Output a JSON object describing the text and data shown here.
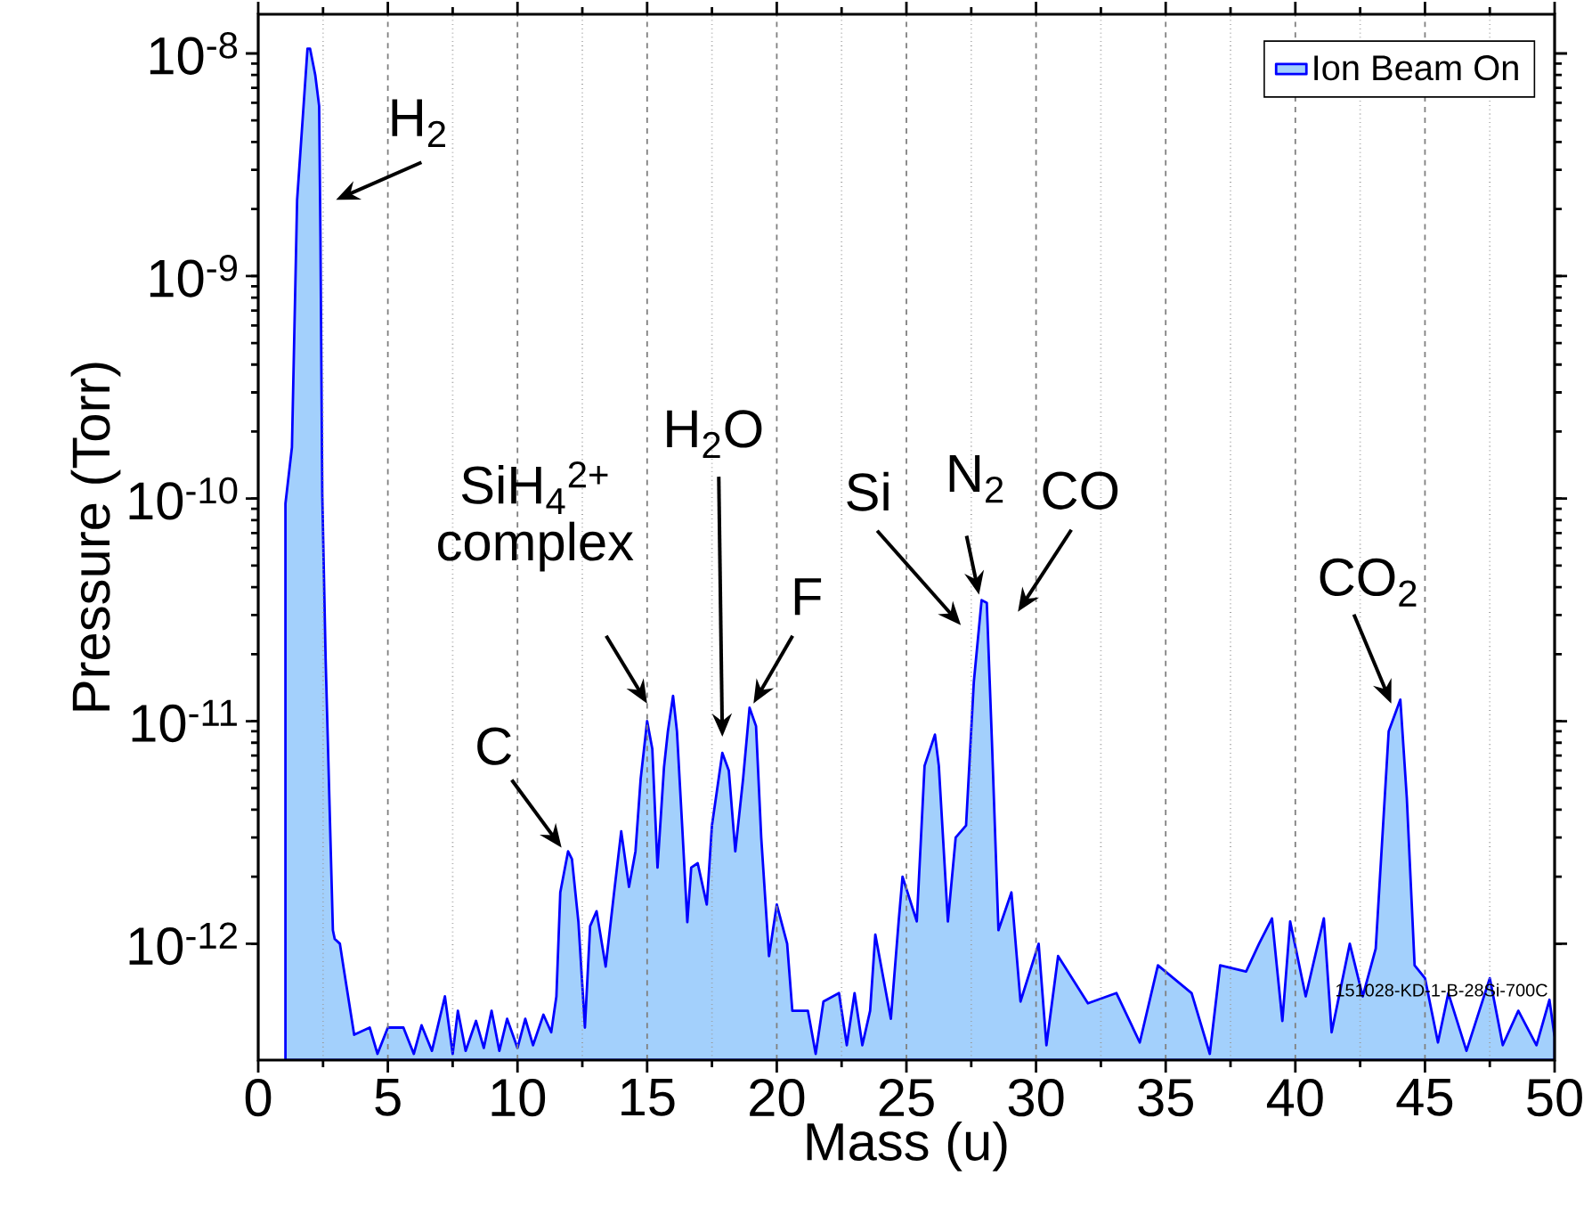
{
  "chart_data": {
    "type": "area",
    "xlabel": "Mass (u)",
    "ylabel": "Pressure (Torr)",
    "x": [
      1.05,
      1.3,
      1.5,
      1.9,
      2.0,
      2.2,
      2.35,
      2.4,
      2.47,
      2.6,
      2.88,
      2.95,
      3.15,
      3.3,
      3.5,
      3.7,
      4.0,
      4.3,
      4.6,
      5.0,
      5.3,
      5.6,
      6.0,
      6.3,
      6.7,
      7.2,
      7.5,
      7.7,
      8.0,
      8.4,
      8.7,
      9.0,
      9.3,
      9.6,
      10.0,
      10.3,
      10.6,
      11.0,
      11.3,
      11.5,
      11.65,
      11.95,
      12.1,
      12.35,
      12.6,
      12.8,
      13.05,
      13.4,
      13.75,
      14.0,
      14.3,
      14.55,
      14.75,
      15.0,
      15.2,
      15.4,
      15.65,
      15.8,
      16.0,
      16.15,
      16.35,
      16.55,
      16.7,
      16.95,
      17.3,
      17.5,
      17.9,
      18.15,
      18.4,
      18.7,
      18.95,
      19.2,
      19.4,
      19.7,
      20.0,
      20.4,
      20.6,
      20.8,
      21.2,
      21.5,
      21.8,
      22.1,
      22.4,
      22.7,
      23.0,
      23.3,
      23.6,
      23.8,
      24.4,
      24.7,
      24.85,
      25.4,
      25.7,
      26.1,
      26.25,
      26.6,
      26.9,
      27.3,
      27.6,
      27.9,
      28.1,
      28.3,
      28.55,
      29.05,
      29.4,
      30.1,
      30.4,
      30.85,
      31.5,
      32.0,
      32.4,
      33.1,
      34.0,
      34.7,
      35.3,
      36.0,
      36.7,
      37.1,
      37.6,
      38.1,
      38.6,
      39.1,
      39.5,
      39.8,
      40.4,
      41.1,
      41.4,
      42.1,
      42.6,
      43.1,
      43.6,
      44.05,
      44.3,
      44.6,
      45.0,
      45.5,
      45.9,
      46.6,
      47.5,
      48.0,
      48.6,
      49.3,
      49.8,
      50.0
    ],
    "series": [
      {
        "name": "Ion Beam On",
        "color": "#a3d0fc",
        "values": [
          9.5e-11,
          1.7e-10,
          2.2e-09,
          1.05e-08,
          1.05e-08,
          8e-09,
          5.8e-09,
          1.5e-09,
          1.05e-10,
          1.9e-11,
          1.15e-12,
          1.05e-12,
          1e-12,
          7.7e-13,
          null,
          3.9e-13,
          null,
          4.2e-13,
          3.2e-13,
          4.2e-13,
          null,
          4.2e-13,
          3.2e-13,
          4.3e-13,
          3.3e-13,
          5.8e-13,
          3.2e-13,
          5e-13,
          3.3e-13,
          4.5e-13,
          3.4e-13,
          5e-13,
          3.3e-13,
          4.6e-13,
          3.4e-13,
          4.6e-13,
          3.5e-13,
          4.8e-13,
          4e-13,
          5.8e-13,
          1.7e-12,
          2.6e-12,
          2.4e-12,
          1.25e-12,
          4.2e-13,
          1.2e-12,
          1.4e-12,
          7.9e-13,
          1.8e-12,
          3.2e-12,
          1.8e-12,
          2.6e-12,
          5.5e-12,
          1e-11,
          7.5e-12,
          2.2e-12,
          6.2e-12,
          9e-12,
          1.3e-11,
          9e-12,
          3.4e-12,
          1.25e-12,
          2.2e-12,
          2.3e-12,
          1.5e-12,
          3.4e-12,
          7.2e-12,
          6e-12,
          2.6e-12,
          5.5e-12,
          1.15e-11,
          9.5e-12,
          3e-12,
          8.8e-13,
          1.5e-12,
          1e-12,
          5e-13,
          null,
          5e-13,
          3.2e-13,
          5.5e-13,
          null,
          6e-13,
          3.5e-13,
          6e-13,
          3.5e-13,
          5e-13,
          1.1e-12,
          4.6e-13,
          1.26e-12,
          2e-12,
          1.26e-12,
          6.3e-12,
          8.7e-12,
          6.3e-12,
          1.26e-12,
          3e-12,
          3.4e-12,
          1.5e-11,
          3.5e-11,
          3.4e-11,
          8e-12,
          1.15e-12,
          1.7e-12,
          5.5e-13,
          1e-12,
          3.5e-13,
          8.8e-13,
          null,
          5.4e-13,
          null,
          6e-13,
          3.6e-13,
          8e-13,
          null,
          6e-13,
          3.2e-13,
          8e-13,
          null,
          7.5e-13,
          1e-12,
          1.3e-12,
          4.5e-13,
          1.26e-12,
          5.8e-13,
          1.3e-12,
          4e-13,
          1e-12,
          5.8e-13,
          9.5e-13,
          9e-12,
          1.25e-11,
          4.5e-12,
          8e-13,
          7e-13,
          3.6e-13,
          6e-13,
          3.3e-13,
          7e-13,
          3.5e-13,
          5e-13,
          3.5e-13,
          5.6e-13,
          3.8e-13
        ]
      }
    ],
    "xlim": [
      0,
      50
    ],
    "ylim": [
      3e-13,
      1.5e-08
    ],
    "xticks": [
      0,
      {
        "value": 2.5,
        "label": null
      },
      5,
      {
        "value": 7.5,
        "label": null
      },
      10,
      {
        "value": 12.5,
        "label": null
      },
      15,
      {
        "value": 17.5,
        "label": null
      },
      20,
      {
        "value": 22.5,
        "label": null
      },
      25,
      {
        "value": 27.5,
        "label": null
      },
      30,
      {
        "value": 32.5,
        "label": null
      },
      35,
      {
        "value": 37.5,
        "label": null
      },
      40,
      {
        "value": 42.5,
        "label": null
      },
      45,
      {
        "value": 47.5,
        "label": null
      },
      50
    ],
    "yticks": [
      {
        "value": 1e-12,
        "label": "10$^{-12}$"
      },
      {
        "value": 1e-11,
        "label": "10$^{-11}$"
      },
      {
        "value": 1e-10,
        "label": "10$^{-10}$"
      },
      {
        "value": 1e-09,
        "label": "10$^{-9}$"
      },
      {
        "value": 1e-08,
        "label": "10$^{-8}$"
      }
    ],
    "log": true,
    "grid": "x",
    "legend": "top right",
    "annotations": [
      "H$_{2}$",
      {
        "text": "C",
        "x": 11.7,
        "y": 2.7e-12
      },
      "SiH$_{4}$$^{2+}$ complex",
      "H$_{2}$O",
      {
        "text": "F",
        "x": 19.1,
        "y": 1.2e-11
      },
      "Si",
      {
        "text": "N$_{2}$",
        "x": 27.8,
        "y": 3.7e-11
      },
      "CO",
      "CO$_{2}$",
      "151028-KD-1-B-28Si-700C"
    ]
  }
}
